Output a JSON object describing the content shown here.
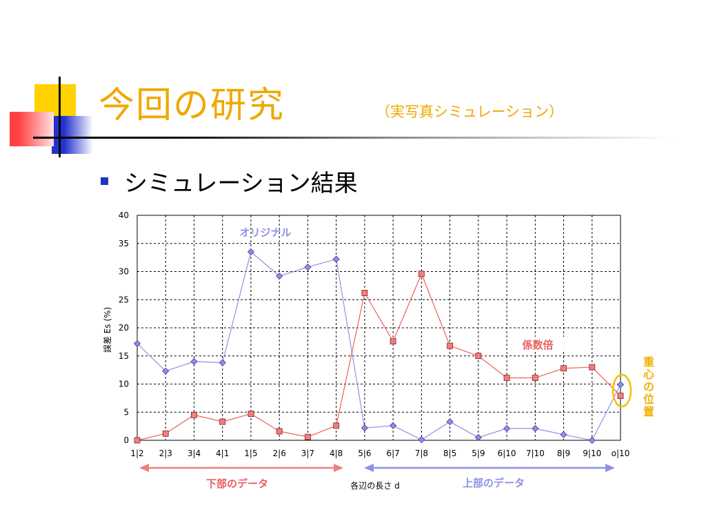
{
  "slide": {
    "title": "今回の研究",
    "subtitle": "（実写真シミュレーション）",
    "bullet": "シミュレーション結果"
  },
  "colors": {
    "accent": "#f0a800",
    "original": "#8f8fe8",
    "scaled": "#e85f5f",
    "centroid": "#f0c000",
    "bullet": "#1f33c8"
  },
  "chart_data": {
    "type": "line",
    "categories": [
      "1|2",
      "2|3",
      "3|4",
      "4|1",
      "1|5",
      "2|6",
      "3|7",
      "4|8",
      "5|6",
      "6|7",
      "7|8",
      "8|5",
      "5|9",
      "6|10",
      "7|10",
      "8|9",
      "9|10",
      "o|10"
    ],
    "ylim": [
      0,
      40
    ],
    "yticks": [
      0,
      5,
      10,
      15,
      20,
      25,
      30,
      35,
      40
    ],
    "ylabel": "誤差 Es (%)",
    "xlabel": "各辺の長さ d",
    "grid": true,
    "series": [
      {
        "name": "オリジナル",
        "color": "#8f8fe8",
        "marker": "diamond",
        "values": [
          17.2,
          12.3,
          14.0,
          13.8,
          33.5,
          29.2,
          30.8,
          32.2,
          2.2,
          2.6,
          0.1,
          3.3,
          0.5,
          2.1,
          2.1,
          1.0,
          0.0,
          9.9
        ]
      },
      {
        "name": "係数倍",
        "color": "#e85f5f",
        "marker": "square",
        "values": [
          0.0,
          1.2,
          4.5,
          3.3,
          4.7,
          1.6,
          0.6,
          2.6,
          26.2,
          17.6,
          29.6,
          16.8,
          15.0,
          11.1,
          11.1,
          12.8,
          13.0,
          7.9
        ]
      }
    ],
    "annotations": {
      "lower": "下部のデータ",
      "upper": "上部のデータ",
      "centroid": "重心の位置"
    }
  }
}
